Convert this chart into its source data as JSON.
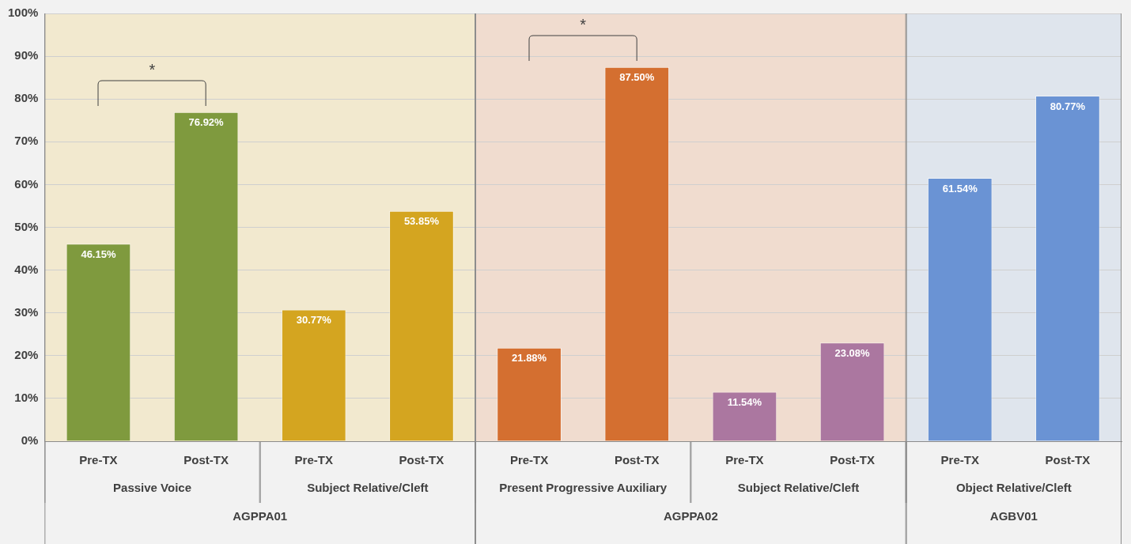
{
  "chart_data": {
    "type": "bar",
    "categories": [
      "Pre-TX",
      "Post-TX",
      "Pre-TX",
      "Post-TX",
      "Pre-TX",
      "Post-TX",
      "Pre-TX",
      "Post-TX",
      "Pre-TX",
      "Post-TX"
    ],
    "values": [
      46.15,
      76.92,
      30.77,
      53.85,
      21.88,
      87.5,
      11.54,
      23.08,
      61.54,
      80.77
    ],
    "colors": [
      "#7f9a3e",
      "#7f9a3e",
      "#d4a520",
      "#d4a520",
      "#d46f30",
      "#d46f30",
      "#ab77a0",
      "#ab77a0",
      "#6a93d4",
      "#6a93d4"
    ],
    "value_labels": [
      "46.15%",
      "76.92%",
      "30.77%",
      "53.85%",
      "21.88%",
      "87.50%",
      "11.54%",
      "23.08%",
      "61.54%",
      "80.77%"
    ],
    "ylim": [
      0,
      100
    ],
    "yticks": [
      {
        "value": 0,
        "label": "0%"
      },
      {
        "value": 10,
        "label": "10%"
      },
      {
        "value": 20,
        "label": "20%"
      },
      {
        "value": 30,
        "label": "30%"
      },
      {
        "value": 40,
        "label": "40%"
      },
      {
        "value": 50,
        "label": "50%"
      },
      {
        "value": 60,
        "label": "60%"
      },
      {
        "value": 70,
        "label": "70%"
      },
      {
        "value": 80,
        "label": "80%"
      },
      {
        "value": 90,
        "label": "90%"
      },
      {
        "value": 100,
        "label": "100%"
      }
    ],
    "grid": "y",
    "annotations": [
      "*",
      "*",
      "Passive Voice",
      "Subject Relative/Cleft",
      "Present Progressive Auxiliary",
      "Subject Relative/Cleft",
      "Object Relative/Cleft",
      "AGPPA01",
      "AGPPA02",
      "AGBV01"
    ]
  }
}
